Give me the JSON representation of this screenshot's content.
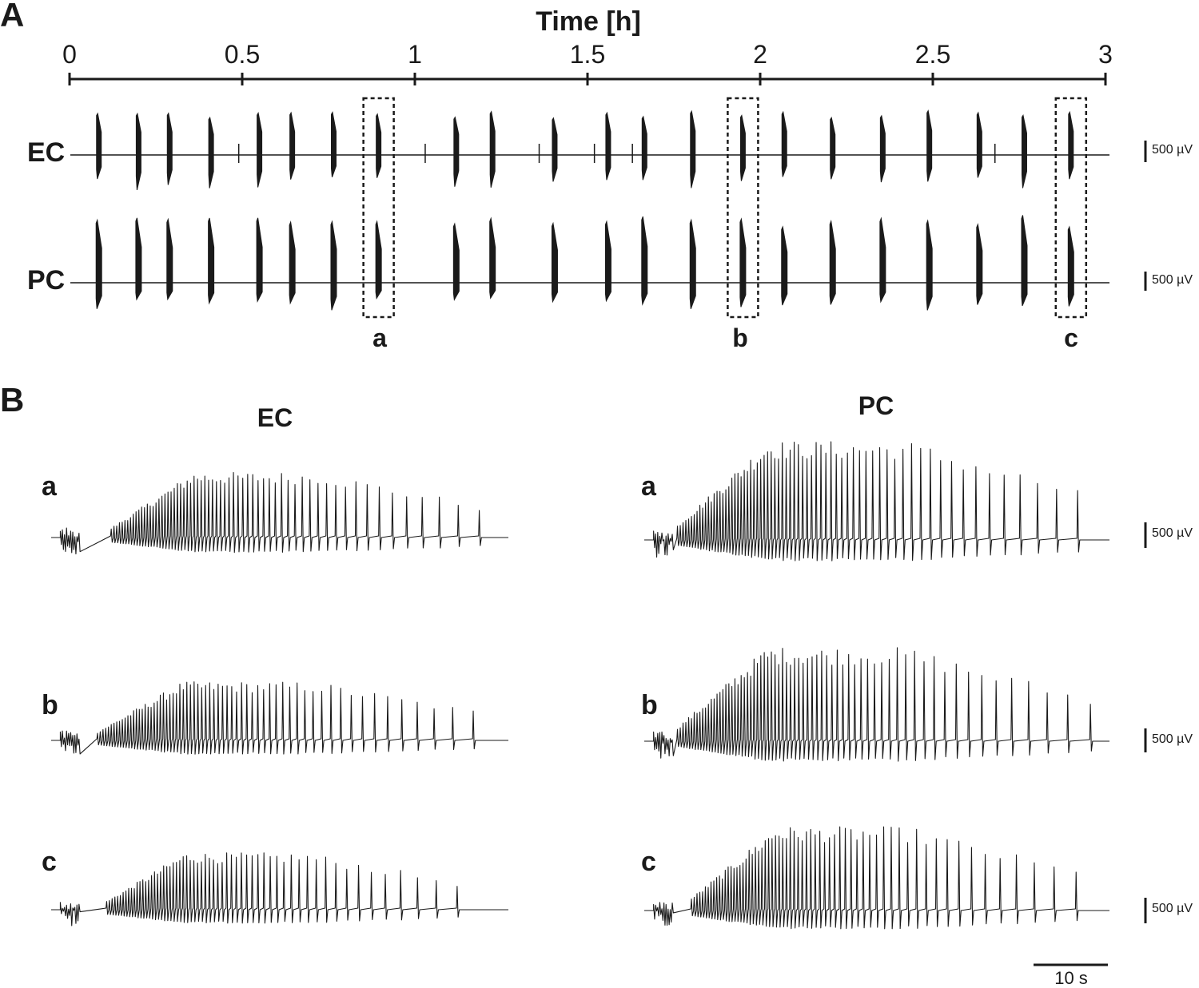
{
  "panel_A": {
    "letter": "A",
    "axis_title": "Time [h]",
    "traces": [
      "EC",
      "PC"
    ],
    "window_labels": [
      "a",
      "b",
      "c"
    ]
  },
  "panel_B": {
    "letter": "B",
    "columns": [
      "EC",
      "PC"
    ],
    "row_labels": [
      "a",
      "b",
      "c"
    ]
  },
  "scale_bars": {
    "voltage": "500 µV",
    "time": "10 s"
  },
  "colors": {
    "trace": "#1a1a1a",
    "background": "#ffffff"
  },
  "chart_data": [
    {
      "type": "line",
      "title": "",
      "xlabel": "Time [h]",
      "xlim": [
        0,
        3
      ],
      "xticks": [
        "0",
        "0.5",
        "1",
        "1.5",
        "2",
        "2.5",
        "3"
      ],
      "series": [
        {
          "name": "EC",
          "event_times_h": [
            0.085,
            0.2,
            0.29,
            0.41,
            0.55,
            0.645,
            0.765,
            0.895,
            1.12,
            1.225,
            1.405,
            1.56,
            1.665,
            1.805,
            1.95,
            2.07,
            2.21,
            2.355,
            2.49,
            2.635,
            2.765,
            2.9
          ]
        },
        {
          "name": "PC",
          "event_times_h": [
            0.085,
            0.2,
            0.29,
            0.41,
            0.55,
            0.645,
            0.765,
            0.895,
            1.12,
            1.225,
            1.405,
            1.56,
            1.665,
            1.805,
            1.95,
            2.07,
            2.21,
            2.355,
            2.49,
            2.635,
            2.765,
            2.9
          ]
        }
      ],
      "highlighted_windows": [
        {
          "label": "a",
          "center_h": 0.895
        },
        {
          "label": "b",
          "center_h": 1.95
        },
        {
          "label": "c",
          "center_h": 2.9
        }
      ]
    },
    {
      "type": "line",
      "title": "EC",
      "units": {
        "voltage_scale": "500 µV",
        "time_scale": "10 s"
      },
      "series": [
        {
          "name": "a"
        },
        {
          "name": "b"
        },
        {
          "name": "c"
        }
      ]
    },
    {
      "type": "line",
      "title": "PC",
      "units": {
        "voltage_scale": "500 µV",
        "time_scale": "10 s"
      },
      "series": [
        {
          "name": "a"
        },
        {
          "name": "b"
        },
        {
          "name": "c"
        }
      ]
    }
  ]
}
